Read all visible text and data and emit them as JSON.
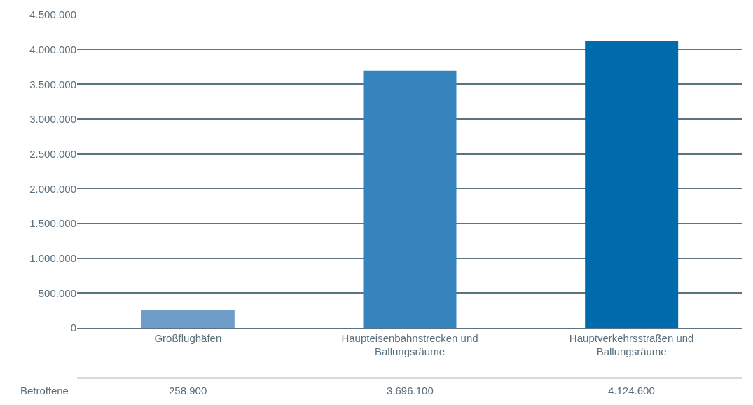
{
  "chart_data": {
    "type": "bar",
    "categories": [
      "Großflughäfen",
      "Haupteisenbahnstrecken und Ballungsräume",
      "Hauptverkehrsstraßen und Ballungsräume"
    ],
    "values": [
      258900,
      3696100,
      4124600
    ],
    "colors": [
      "#6f9dca",
      "#3584bd",
      "#006bac"
    ],
    "value_labels": [
      "258.900",
      "3.696.100",
      "4.124.600"
    ],
    "annotations": [
      "Betroffene"
    ],
    "ylim": [
      0,
      4500000
    ],
    "yticks": [
      {
        "value": 0,
        "label": "0"
      },
      {
        "value": 500000,
        "label": "500.000"
      },
      {
        "value": 1000000,
        "label": "1.000.000"
      },
      {
        "value": 1500000,
        "label": "1.500.000"
      },
      {
        "value": 2000000,
        "label": "2.000.000"
      },
      {
        "value": 2500000,
        "label": "2.500.000"
      },
      {
        "value": 3000000,
        "label": "3.000.000"
      },
      {
        "value": 3500000,
        "label": "3.500.000"
      },
      {
        "value": 4000000,
        "label": "4.000.000"
      },
      {
        "value": 4500000,
        "label": "4.500.000"
      }
    ],
    "grid": "y"
  }
}
